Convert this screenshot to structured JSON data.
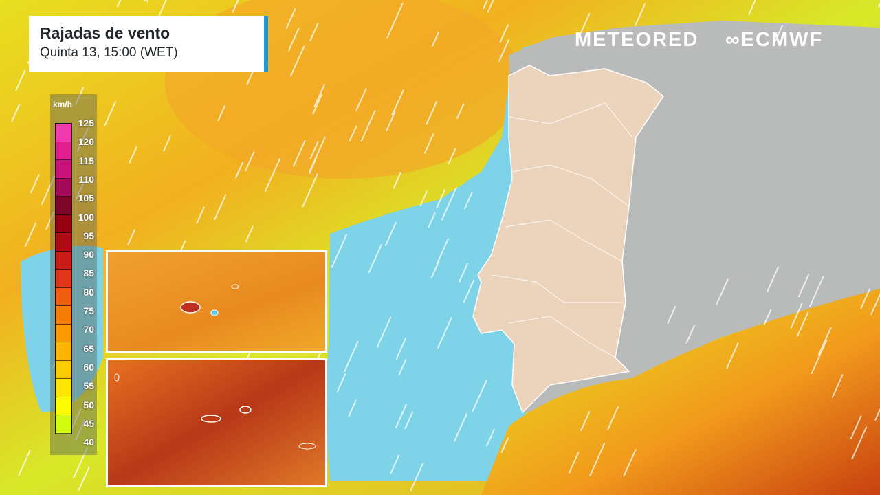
{
  "header": {
    "title": "Rajadas de vento",
    "subtitle": "Quinta 13, 15:00 (WET)"
  },
  "logos": {
    "meteored": "METEORED",
    "ecmwf": "ECMWF"
  },
  "legend": {
    "unit": "km/h",
    "labels": [
      "125",
      "120",
      "115",
      "110",
      "105",
      "100",
      "95",
      "90",
      "85",
      "80",
      "75",
      "70",
      "65",
      "60",
      "55",
      "50",
      "45",
      "40"
    ],
    "colors": [
      "#f03aae",
      "#e01f91",
      "#c8127a",
      "#a50a58",
      "#7e0428",
      "#960010",
      "#b00a14",
      "#cc1c18",
      "#e0361a",
      "#f05c10",
      "#f77c06",
      "#fb9a04",
      "#fdb404",
      "#fecc02",
      "#ffe400",
      "#fffc00",
      "#d4fb12"
    ]
  },
  "colors": {
    "ocean": "#7fd3e8",
    "land_portugal": "#ecd3bb",
    "land_spain": "#b9bbbb",
    "accent": "#1c9ad6"
  }
}
